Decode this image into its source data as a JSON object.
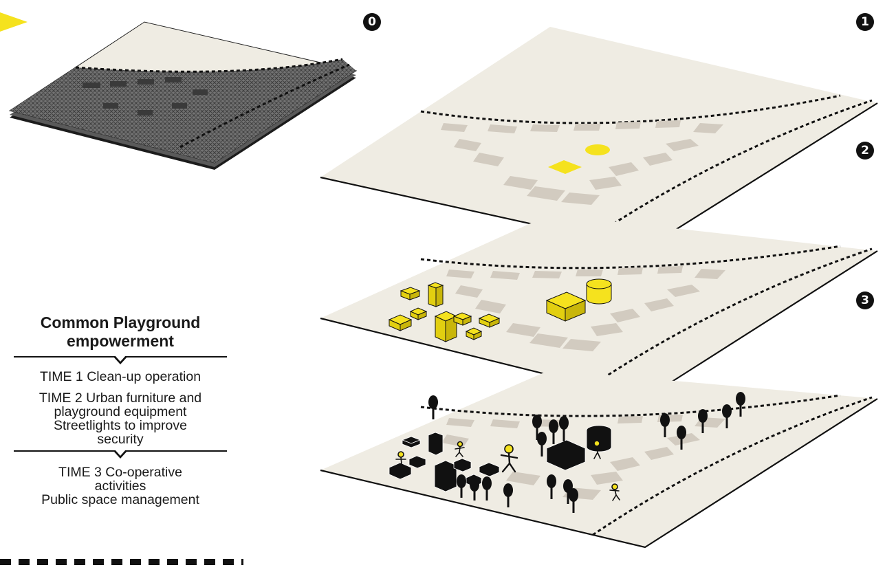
{
  "steps": {
    "s0": "0",
    "s1": "1",
    "s2": "2",
    "s3": "3"
  },
  "legend": {
    "title_line1": "Common Playground",
    "title_line2": "empowerment",
    "time1": "TIME 1 Clean-up operation",
    "time2_line1": "TIME 2 Urban furniture and",
    "time2_line2": "playground equipment",
    "time2_line3": "Streetlights to improve",
    "time2_line4": "security",
    "time3_line1": "TIME 3 Co-operative",
    "time3_line2": "activities",
    "time3_line3": "Public space management"
  },
  "colors": {
    "accent_yellow": "#f5e21e",
    "ground": "#efece3",
    "plot": "#d2cbc0",
    "ink": "#111111"
  }
}
